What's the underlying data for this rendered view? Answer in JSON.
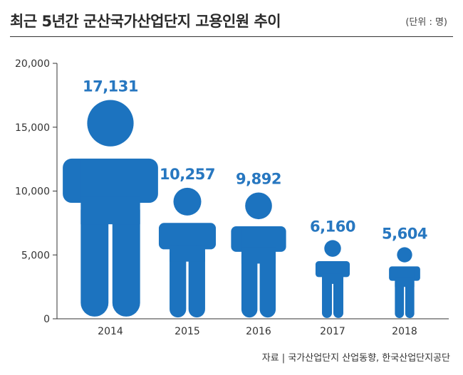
{
  "title": "최근 5년간 군산국가산업단지 고용인원 추이",
  "unit": "(단위 : 명)",
  "source": "자료 | 국가산업단지 산업동향, 한국산업단지공단",
  "colors": {
    "figure": "#1c73bf",
    "value_label": "#2777c0",
    "axis": "#333333"
  },
  "chart_data": {
    "type": "bar",
    "title": "최근 5년간 군산국가산업단지 고용인원 추이",
    "xlabel": "",
    "ylabel": "",
    "categories": [
      "2014",
      "2015",
      "2016",
      "2017",
      "2018"
    ],
    "values": [
      17131,
      10257,
      9892,
      6160,
      5604
    ],
    "value_labels": [
      "17,131",
      "10,257",
      "9,892",
      "6,160",
      "5,604"
    ],
    "ylim": [
      0,
      20000
    ],
    "yticks": [
      0,
      5000,
      10000,
      15000,
      20000
    ],
    "ytick_labels": [
      "0",
      "5,000",
      "10,000",
      "15,000",
      "20,000"
    ],
    "mark": "person-figure",
    "grid": false
  }
}
